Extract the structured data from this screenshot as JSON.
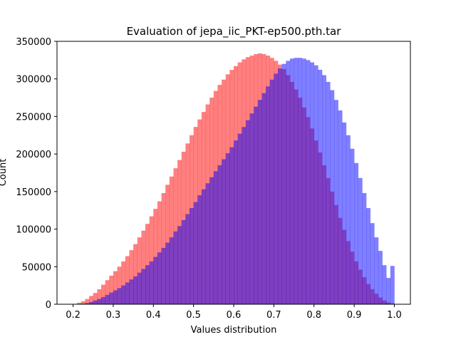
{
  "chart_data": {
    "type": "bar",
    "title": "Evaluation of jepa_iic_PKT-ep500.pth.tar",
    "xlabel": "Values distribution",
    "ylabel": "Count",
    "xlim": [
      0.16,
      1.04
    ],
    "ylim": [
      0,
      350000
    ],
    "xticks": [
      "0.2",
      "0.3",
      "0.4",
      "0.5",
      "0.6",
      "0.7",
      "0.8",
      "0.9",
      "1.0"
    ],
    "yticks": [
      "0",
      "50000",
      "100000",
      "150000",
      "200000",
      "250000",
      "300000",
      "350000"
    ],
    "grid": false,
    "legend": "none",
    "bin_edges_range": [
      0.2,
      1.0
    ],
    "series": [
      {
        "color": "#ff0000",
        "alpha": 0.5,
        "values": [
          500,
          2000,
          4000,
          7000,
          11000,
          15000,
          20000,
          26000,
          32000,
          38000,
          44000,
          50000,
          57000,
          64000,
          72000,
          80000,
          89000,
          98000,
          107000,
          117000,
          127000,
          137000,
          148000,
          159000,
          170000,
          181000,
          192000,
          203000,
          214000,
          225000,
          236000,
          246000,
          256000,
          266000,
          275000,
          284000,
          292000,
          299000,
          306000,
          312000,
          317000,
          322000,
          326000,
          329000,
          331000,
          333000,
          334000,
          333000,
          331000,
          328000,
          324000,
          319000,
          313000,
          305000,
          296000,
          286000,
          275000,
          262000,
          249000,
          234000,
          218000,
          202000,
          185000,
          168000,
          150000,
          132000,
          115000,
          99000,
          84000,
          70000,
          57000,
          46000,
          36000,
          27000,
          20000,
          14000,
          9000,
          5000,
          2500,
          1000
        ]
      },
      {
        "color": "#0000ff",
        "alpha": 0.5,
        "values": [
          0,
          300,
          800,
          1500,
          3000,
          5000,
          7000,
          9500,
          12500,
          15500,
          18500,
          21500,
          25000,
          29000,
          33000,
          37000,
          42000,
          47000,
          52000,
          57000,
          63000,
          69000,
          75000,
          82000,
          89000,
          97000,
          104000,
          112000,
          120000,
          128000,
          136000,
          145000,
          153000,
          161000,
          169000,
          177000,
          185000,
          193000,
          201000,
          209000,
          218000,
          227000,
          236000,
          245000,
          254000,
          263000,
          272000,
          281000,
          290000,
          299000,
          307000,
          314000,
          320000,
          324000,
          327000,
          328000,
          328000,
          327000,
          325000,
          322000,
          318000,
          312000,
          305000,
          296000,
          285000,
          272000,
          258000,
          242000,
          225000,
          207000,
          188000,
          168000,
          148000,
          128000,
          108000,
          89000,
          71000,
          52000,
          35000,
          51000
        ]
      }
    ]
  }
}
